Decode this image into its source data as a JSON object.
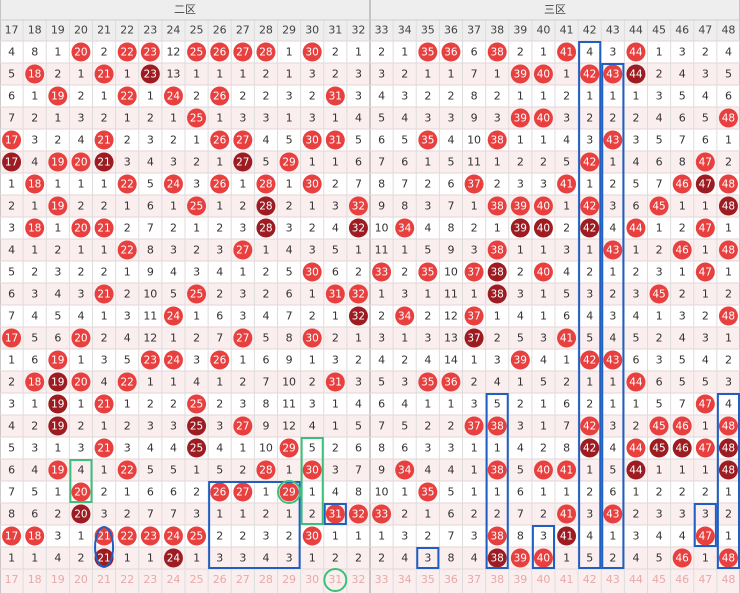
{
  "header": {
    "sections": [
      "二区",
      "三区"
    ],
    "columns": [
      17,
      18,
      19,
      20,
      21,
      22,
      23,
      24,
      25,
      26,
      27,
      28,
      29,
      30,
      31,
      32,
      33,
      34,
      35,
      36,
      37,
      38,
      39,
      40,
      41,
      42,
      43,
      44,
      45,
      46,
      47,
      48
    ]
  },
  "rows": [
    [
      4,
      8,
      1,
      20,
      2,
      22,
      23,
      12,
      25,
      26,
      27,
      28,
      1,
      30,
      2,
      1,
      2,
      1,
      35,
      36,
      6,
      38,
      2,
      1,
      41,
      4,
      3,
      44,
      1,
      3,
      2,
      4
    ],
    [
      5,
      18,
      2,
      1,
      21,
      1,
      23,
      13,
      1,
      1,
      1,
      2,
      1,
      3,
      2,
      3,
      3,
      2,
      1,
      1,
      7,
      1,
      39,
      40,
      1,
      42,
      43,
      44,
      2,
      4,
      3,
      5
    ],
    [
      6,
      1,
      19,
      2,
      1,
      22,
      1,
      24,
      2,
      26,
      2,
      2,
      3,
      2,
      31,
      3,
      4,
      3,
      2,
      2,
      8,
      2,
      1,
      1,
      2,
      1,
      1,
      1,
      3,
      5,
      4,
      6
    ],
    [
      7,
      2,
      1,
      3,
      2,
      1,
      2,
      1,
      25,
      1,
      3,
      3,
      1,
      3,
      1,
      4,
      5,
      4,
      3,
      3,
      9,
      3,
      39,
      40,
      3,
      2,
      2,
      2,
      4,
      6,
      5,
      48
    ],
    [
      17,
      3,
      2,
      4,
      21,
      2,
      3,
      2,
      1,
      26,
      27,
      4,
      5,
      30,
      31,
      5,
      6,
      5,
      35,
      4,
      10,
      38,
      1,
      1,
      4,
      3,
      43,
      3,
      5,
      7,
      6,
      1
    ],
    [
      17,
      4,
      19,
      20,
      21,
      3,
      4,
      3,
      2,
      1,
      27,
      5,
      29,
      1,
      1,
      6,
      7,
      6,
      1,
      5,
      11,
      1,
      2,
      2,
      5,
      42,
      1,
      4,
      6,
      8,
      47,
      2
    ],
    [
      1,
      18,
      1,
      1,
      1,
      22,
      5,
      24,
      3,
      26,
      1,
      28,
      1,
      30,
      2,
      7,
      8,
      7,
      2,
      6,
      37,
      2,
      3,
      3,
      41,
      1,
      2,
      5,
      7,
      46,
      47,
      48
    ],
    [
      2,
      1,
      19,
      2,
      2,
      1,
      6,
      1,
      25,
      1,
      2,
      28,
      2,
      1,
      3,
      32,
      9,
      8,
      3,
      7,
      1,
      38,
      39,
      40,
      1,
      42,
      3,
      6,
      45,
      1,
      1,
      48
    ],
    [
      3,
      18,
      1,
      20,
      21,
      2,
      7,
      2,
      1,
      2,
      3,
      28,
      3,
      2,
      4,
      32,
      10,
      34,
      4,
      8,
      2,
      1,
      39,
      40,
      2,
      42,
      4,
      44,
      1,
      2,
      47,
      1
    ],
    [
      4,
      1,
      2,
      1,
      1,
      22,
      8,
      3,
      2,
      3,
      27,
      1,
      4,
      3,
      5,
      1,
      11,
      1,
      5,
      9,
      3,
      38,
      1,
      1,
      3,
      1,
      43,
      1,
      2,
      46,
      1,
      48
    ],
    [
      5,
      2,
      3,
      2,
      2,
      1,
      9,
      4,
      3,
      4,
      1,
      2,
      5,
      30,
      6,
      2,
      33,
      2,
      35,
      10,
      37,
      38,
      2,
      40,
      4,
      2,
      1,
      2,
      3,
      1,
      47,
      1
    ],
    [
      6,
      3,
      4,
      3,
      21,
      2,
      10,
      5,
      25,
      2,
      3,
      2,
      6,
      1,
      31,
      32,
      1,
      3,
      1,
      11,
      1,
      38,
      3,
      1,
      5,
      3,
      2,
      3,
      45,
      2,
      1,
      2
    ],
    [
      7,
      4,
      5,
      4,
      1,
      3,
      11,
      24,
      1,
      6,
      3,
      4,
      7,
      2,
      1,
      32,
      2,
      34,
      2,
      12,
      37,
      1,
      4,
      1,
      6,
      4,
      3,
      4,
      1,
      3,
      2,
      48
    ],
    [
      17,
      5,
      6,
      20,
      2,
      4,
      12,
      1,
      2,
      7,
      27,
      5,
      8,
      30,
      2,
      1,
      3,
      1,
      3,
      13,
      37,
      2,
      5,
      3,
      41,
      5,
      4,
      5,
      2,
      4,
      3,
      1
    ],
    [
      1,
      6,
      19,
      1,
      3,
      5,
      23,
      24,
      3,
      26,
      1,
      6,
      9,
      1,
      3,
      2,
      4,
      2,
      4,
      14,
      1,
      3,
      39,
      4,
      1,
      42,
      43,
      6,
      3,
      5,
      4,
      2
    ],
    [
      2,
      18,
      19,
      20,
      4,
      22,
      1,
      1,
      4,
      1,
      2,
      7,
      10,
      2,
      31,
      3,
      5,
      3,
      35,
      36,
      2,
      4,
      1,
      5,
      2,
      1,
      1,
      44,
      6,
      5,
      5,
      3
    ],
    [
      3,
      1,
      19,
      1,
      21,
      1,
      2,
      2,
      25,
      2,
      3,
      8,
      11,
      3,
      1,
      4,
      6,
      4,
      1,
      1,
      3,
      5,
      2,
      1,
      6,
      2,
      1,
      1,
      5,
      7,
      47,
      4
    ],
    [
      4,
      2,
      19,
      2,
      1,
      2,
      3,
      3,
      25,
      3,
      27,
      9,
      12,
      4,
      1,
      5,
      7,
      5,
      2,
      2,
      37,
      38,
      3,
      1,
      7,
      42,
      3,
      2,
      45,
      46,
      1,
      48
    ],
    [
      5,
      3,
      1,
      3,
      21,
      3,
      4,
      4,
      25,
      4,
      1,
      10,
      29,
      5,
      2,
      6,
      8,
      6,
      3,
      3,
      1,
      1,
      4,
      2,
      8,
      42,
      4,
      44,
      45,
      46,
      47,
      48
    ],
    [
      6,
      4,
      19,
      4,
      1,
      22,
      5,
      5,
      1,
      5,
      2,
      28,
      1,
      30,
      3,
      7,
      9,
      34,
      4,
      4,
      1,
      38,
      5,
      40,
      41,
      1,
      5,
      44,
      1,
      1,
      1,
      48
    ],
    [
      7,
      5,
      1,
      20,
      2,
      1,
      6,
      6,
      2,
      26,
      27,
      1,
      29,
      1,
      4,
      8,
      10,
      1,
      35,
      5,
      1,
      1,
      6,
      1,
      1,
      2,
      6,
      1,
      2,
      2,
      2,
      1
    ],
    [
      8,
      6,
      2,
      20,
      3,
      2,
      7,
      7,
      3,
      1,
      1,
      2,
      1,
      2,
      31,
      32,
      33,
      2,
      1,
      6,
      2,
      2,
      7,
      2,
      41,
      3,
      43,
      2,
      3,
      3,
      3,
      2
    ],
    [
      17,
      18,
      3,
      1,
      21,
      22,
      23,
      24,
      25,
      2,
      2,
      3,
      2,
      30,
      1,
      1,
      1,
      3,
      2,
      7,
      3,
      38,
      8,
      3,
      41,
      4,
      1,
      3,
      4,
      4,
      47,
      1
    ],
    [
      1,
      1,
      4,
      2,
      21,
      1,
      1,
      24,
      1,
      3,
      3,
      4,
      3,
      1,
      2,
      2,
      2,
      4,
      3,
      8,
      4,
      38,
      39,
      40,
      1,
      5,
      2,
      4,
      5,
      46,
      1,
      48
    ]
  ]
}
